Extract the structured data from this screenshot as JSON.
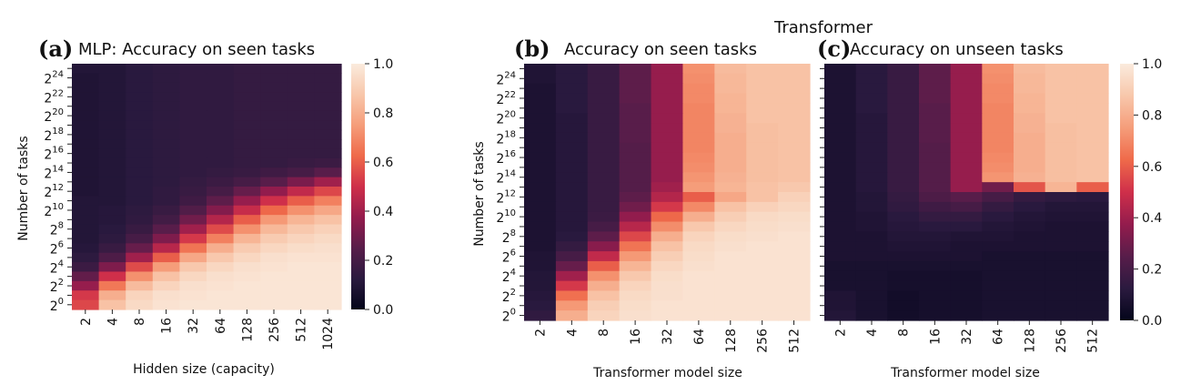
{
  "suptitle": "Transformer",
  "colorscale": {
    "name": "rocket",
    "stops": [
      "#03051a",
      "#2b1a3f",
      "#581d4a",
      "#941c4d",
      "#cf2f4a",
      "#ef6a4a",
      "#f59d7a",
      "#f8c7ab",
      "#faebdd"
    ]
  },
  "chart_data": [
    {
      "type": "heatmap",
      "panel": "(a)",
      "title": "MLP: Accuracy on seen tasks",
      "xlabel": "Hidden size (capacity)",
      "ylabel": "Number of tasks",
      "x_ticks": [
        "2",
        "4",
        "8",
        "16",
        "32",
        "64",
        "128",
        "256",
        "512",
        "1024"
      ],
      "y_ticks": [
        {
          "base": "2",
          "exp": "24"
        },
        {
          "base": "2",
          "exp": "22"
        },
        {
          "base": "2",
          "exp": "20"
        },
        {
          "base": "2",
          "exp": "18"
        },
        {
          "base": "2",
          "exp": "16"
        },
        {
          "base": "2",
          "exp": "14"
        },
        {
          "base": "2",
          "exp": "12"
        },
        {
          "base": "2",
          "exp": "10"
        },
        {
          "base": "2",
          "exp": "8"
        },
        {
          "base": "2",
          "exp": "6"
        },
        {
          "base": "2",
          "exp": "4"
        },
        {
          "base": "2",
          "exp": "2"
        },
        {
          "base": "2",
          "exp": "0"
        }
      ],
      "y_rows_log2_top_to_bottom": [
        25,
        24,
        23,
        22,
        21,
        20,
        19,
        18,
        17,
        16,
        15,
        14,
        13,
        12,
        11,
        10,
        9,
        8,
        7,
        6,
        5,
        4,
        3,
        2,
        1,
        0
      ],
      "z": [
        [
          0.1,
          0.1,
          0.12,
          0.13,
          0.14,
          0.14,
          0.15,
          0.15,
          0.15,
          0.15
        ],
        [
          0.09,
          0.1,
          0.12,
          0.13,
          0.14,
          0.14,
          0.15,
          0.15,
          0.15,
          0.15
        ],
        [
          0.09,
          0.1,
          0.12,
          0.13,
          0.14,
          0.14,
          0.15,
          0.15,
          0.15,
          0.15
        ],
        [
          0.09,
          0.1,
          0.12,
          0.13,
          0.14,
          0.14,
          0.15,
          0.15,
          0.15,
          0.15
        ],
        [
          0.09,
          0.1,
          0.12,
          0.13,
          0.14,
          0.14,
          0.15,
          0.15,
          0.15,
          0.15
        ],
        [
          0.09,
          0.1,
          0.12,
          0.13,
          0.14,
          0.14,
          0.15,
          0.15,
          0.15,
          0.15
        ],
        [
          0.09,
          0.1,
          0.12,
          0.13,
          0.14,
          0.14,
          0.15,
          0.15,
          0.15,
          0.15
        ],
        [
          0.09,
          0.1,
          0.12,
          0.13,
          0.14,
          0.14,
          0.15,
          0.15,
          0.15,
          0.15
        ],
        [
          0.09,
          0.1,
          0.12,
          0.13,
          0.14,
          0.14,
          0.15,
          0.15,
          0.15,
          0.15
        ],
        [
          0.09,
          0.1,
          0.12,
          0.13,
          0.14,
          0.14,
          0.15,
          0.15,
          0.15,
          0.15
        ],
        [
          0.09,
          0.1,
          0.12,
          0.13,
          0.14,
          0.14,
          0.15,
          0.15,
          0.16,
          0.17
        ],
        [
          0.09,
          0.1,
          0.12,
          0.13,
          0.14,
          0.15,
          0.16,
          0.18,
          0.2,
          0.25
        ],
        [
          0.09,
          0.1,
          0.12,
          0.13,
          0.15,
          0.17,
          0.2,
          0.25,
          0.32,
          0.4
        ],
        [
          0.09,
          0.1,
          0.12,
          0.14,
          0.16,
          0.2,
          0.28,
          0.37,
          0.47,
          0.55
        ],
        [
          0.1,
          0.1,
          0.12,
          0.14,
          0.18,
          0.26,
          0.38,
          0.5,
          0.6,
          0.68
        ],
        [
          0.1,
          0.11,
          0.13,
          0.16,
          0.23,
          0.34,
          0.48,
          0.62,
          0.72,
          0.78
        ],
        [
          0.1,
          0.11,
          0.14,
          0.19,
          0.3,
          0.44,
          0.6,
          0.74,
          0.82,
          0.86
        ],
        [
          0.1,
          0.12,
          0.16,
          0.25,
          0.4,
          0.56,
          0.72,
          0.83,
          0.88,
          0.91
        ],
        [
          0.1,
          0.13,
          0.2,
          0.33,
          0.52,
          0.68,
          0.82,
          0.89,
          0.92,
          0.94
        ],
        [
          0.11,
          0.16,
          0.28,
          0.45,
          0.65,
          0.8,
          0.89,
          0.93,
          0.95,
          0.96
        ],
        [
          0.13,
          0.22,
          0.4,
          0.6,
          0.78,
          0.88,
          0.93,
          0.96,
          0.97,
          0.97
        ],
        [
          0.17,
          0.33,
          0.56,
          0.75,
          0.88,
          0.93,
          0.96,
          0.97,
          0.98,
          0.98
        ],
        [
          0.27,
          0.5,
          0.72,
          0.86,
          0.93,
          0.96,
          0.97,
          0.98,
          0.98,
          0.98
        ],
        [
          0.38,
          0.66,
          0.84,
          0.92,
          0.96,
          0.97,
          0.98,
          0.98,
          0.98,
          0.98
        ],
        [
          0.52,
          0.8,
          0.92,
          0.96,
          0.97,
          0.98,
          0.98,
          0.98,
          0.98,
          0.98
        ],
        [
          0.55,
          0.86,
          0.94,
          0.97,
          0.98,
          0.98,
          0.98,
          0.98,
          0.98,
          0.98
        ]
      ],
      "zlim": [
        0,
        1
      ],
      "colorbar_ticks": [
        "0.0",
        "0.2",
        "0.4",
        "0.6",
        "0.8",
        "1.0"
      ]
    },
    {
      "type": "heatmap",
      "panel": "(b)",
      "title": "Accuracy on seen tasks",
      "xlabel": "Transformer model size",
      "ylabel": "Number of tasks",
      "x_ticks": [
        "2",
        "4",
        "8",
        "16",
        "32",
        "64",
        "128",
        "256",
        "512"
      ],
      "y_ticks": [
        {
          "base": "2",
          "exp": "24"
        },
        {
          "base": "2",
          "exp": "22"
        },
        {
          "base": "2",
          "exp": "20"
        },
        {
          "base": "2",
          "exp": "18"
        },
        {
          "base": "2",
          "exp": "16"
        },
        {
          "base": "2",
          "exp": "14"
        },
        {
          "base": "2",
          "exp": "12"
        },
        {
          "base": "2",
          "exp": "10"
        },
        {
          "base": "2",
          "exp": "8"
        },
        {
          "base": "2",
          "exp": "6"
        },
        {
          "base": "2",
          "exp": "4"
        },
        {
          "base": "2",
          "exp": "2"
        },
        {
          "base": "2",
          "exp": "0"
        }
      ],
      "y_rows_log2_top_to_bottom": [
        25,
        24,
        23,
        22,
        21,
        20,
        19,
        18,
        17,
        16,
        15,
        14,
        13,
        12,
        11,
        10,
        9,
        8,
        7,
        6,
        5,
        4,
        3,
        2,
        1,
        0
      ],
      "z": [
        [
          0.09,
          0.12,
          0.16,
          0.26,
          0.38,
          0.72,
          0.84,
          0.86,
          0.86
        ],
        [
          0.09,
          0.12,
          0.16,
          0.26,
          0.38,
          0.71,
          0.83,
          0.86,
          0.86
        ],
        [
          0.08,
          0.12,
          0.16,
          0.26,
          0.38,
          0.7,
          0.83,
          0.86,
          0.86
        ],
        [
          0.08,
          0.12,
          0.16,
          0.26,
          0.38,
          0.7,
          0.82,
          0.86,
          0.86
        ],
        [
          0.08,
          0.12,
          0.16,
          0.25,
          0.38,
          0.69,
          0.82,
          0.86,
          0.86
        ],
        [
          0.08,
          0.11,
          0.16,
          0.25,
          0.38,
          0.69,
          0.81,
          0.86,
          0.86
        ],
        [
          0.08,
          0.11,
          0.16,
          0.25,
          0.38,
          0.69,
          0.81,
          0.85,
          0.86
        ],
        [
          0.08,
          0.11,
          0.16,
          0.25,
          0.38,
          0.69,
          0.8,
          0.85,
          0.86
        ],
        [
          0.08,
          0.11,
          0.16,
          0.24,
          0.38,
          0.69,
          0.8,
          0.85,
          0.86
        ],
        [
          0.08,
          0.11,
          0.16,
          0.24,
          0.38,
          0.7,
          0.8,
          0.85,
          0.86
        ],
        [
          0.08,
          0.11,
          0.16,
          0.24,
          0.38,
          0.71,
          0.8,
          0.85,
          0.86
        ],
        [
          0.08,
          0.11,
          0.16,
          0.24,
          0.38,
          0.73,
          0.81,
          0.85,
          0.86
        ],
        [
          0.08,
          0.11,
          0.16,
          0.24,
          0.4,
          0.75,
          0.82,
          0.86,
          0.88
        ],
        [
          0.08,
          0.11,
          0.16,
          0.26,
          0.44,
          0.6,
          0.78,
          0.86,
          0.91
        ],
        [
          0.08,
          0.11,
          0.16,
          0.3,
          0.52,
          0.7,
          0.86,
          0.91,
          0.93
        ],
        [
          0.08,
          0.11,
          0.17,
          0.37,
          0.62,
          0.8,
          0.9,
          0.94,
          0.95
        ],
        [
          0.08,
          0.11,
          0.2,
          0.45,
          0.71,
          0.88,
          0.93,
          0.95,
          0.96
        ],
        [
          0.08,
          0.12,
          0.26,
          0.55,
          0.8,
          0.92,
          0.95,
          0.96,
          0.97
        ],
        [
          0.08,
          0.15,
          0.35,
          0.65,
          0.86,
          0.94,
          0.96,
          0.97,
          0.97
        ],
        [
          0.09,
          0.2,
          0.47,
          0.74,
          0.9,
          0.95,
          0.97,
          0.97,
          0.97
        ],
        [
          0.09,
          0.28,
          0.6,
          0.82,
          0.93,
          0.96,
          0.97,
          0.97,
          0.97
        ],
        [
          0.1,
          0.4,
          0.72,
          0.88,
          0.95,
          0.97,
          0.97,
          0.97,
          0.97
        ],
        [
          0.1,
          0.52,
          0.8,
          0.92,
          0.96,
          0.97,
          0.97,
          0.97,
          0.97
        ],
        [
          0.11,
          0.64,
          0.86,
          0.94,
          0.96,
          0.97,
          0.97,
          0.97,
          0.97
        ],
        [
          0.12,
          0.74,
          0.9,
          0.95,
          0.97,
          0.97,
          0.97,
          0.97,
          0.97
        ],
        [
          0.14,
          0.8,
          0.92,
          0.96,
          0.97,
          0.97,
          0.97,
          0.97,
          0.97
        ]
      ],
      "zlim": [
        0,
        1
      ]
    },
    {
      "type": "heatmap",
      "panel": "(c)",
      "title": "Accuracy on unseen tasks",
      "xlabel": "Transformer model size",
      "ylabel": "",
      "x_ticks": [
        "2",
        "4",
        "8",
        "16",
        "32",
        "64",
        "128",
        "256",
        "512"
      ],
      "y_rows_log2_top_to_bottom": [
        25,
        24,
        23,
        22,
        21,
        20,
        19,
        18,
        17,
        16,
        15,
        14,
        13,
        12,
        11,
        10,
        9,
        8,
        7,
        6,
        5,
        4,
        3,
        2,
        1,
        0
      ],
      "z": [
        [
          0.08,
          0.12,
          0.16,
          0.26,
          0.38,
          0.72,
          0.84,
          0.86,
          0.86
        ],
        [
          0.08,
          0.12,
          0.16,
          0.26,
          0.38,
          0.71,
          0.83,
          0.86,
          0.86
        ],
        [
          0.08,
          0.12,
          0.16,
          0.26,
          0.38,
          0.7,
          0.83,
          0.86,
          0.86
        ],
        [
          0.08,
          0.12,
          0.16,
          0.26,
          0.38,
          0.7,
          0.82,
          0.86,
          0.86
        ],
        [
          0.08,
          0.12,
          0.16,
          0.25,
          0.38,
          0.69,
          0.82,
          0.86,
          0.86
        ],
        [
          0.08,
          0.11,
          0.16,
          0.25,
          0.38,
          0.69,
          0.81,
          0.86,
          0.86
        ],
        [
          0.08,
          0.11,
          0.16,
          0.25,
          0.38,
          0.69,
          0.81,
          0.85,
          0.86
        ],
        [
          0.08,
          0.11,
          0.16,
          0.25,
          0.38,
          0.69,
          0.8,
          0.85,
          0.86
        ],
        [
          0.08,
          0.11,
          0.16,
          0.24,
          0.38,
          0.69,
          0.8,
          0.85,
          0.86
        ],
        [
          0.08,
          0.11,
          0.16,
          0.24,
          0.38,
          0.7,
          0.8,
          0.85,
          0.86
        ],
        [
          0.08,
          0.11,
          0.16,
          0.24,
          0.38,
          0.71,
          0.8,
          0.85,
          0.86
        ],
        [
          0.08,
          0.11,
          0.16,
          0.24,
          0.38,
          0.73,
          0.81,
          0.85,
          0.86
        ],
        [
          0.08,
          0.11,
          0.16,
          0.24,
          0.38,
          0.3,
          0.58,
          0.82,
          0.6
        ],
        [
          0.08,
          0.1,
          0.15,
          0.22,
          0.25,
          0.2,
          0.15,
          0.13,
          0.12
        ],
        [
          0.08,
          0.1,
          0.14,
          0.18,
          0.2,
          0.15,
          0.12,
          0.1,
          0.1
        ],
        [
          0.08,
          0.09,
          0.12,
          0.15,
          0.15,
          0.12,
          0.1,
          0.09,
          0.09
        ],
        [
          0.08,
          0.09,
          0.11,
          0.12,
          0.12,
          0.1,
          0.09,
          0.08,
          0.08
        ],
        [
          0.08,
          0.08,
          0.1,
          0.1,
          0.09,
          0.09,
          0.08,
          0.08,
          0.08
        ],
        [
          0.08,
          0.08,
          0.09,
          0.09,
          0.08,
          0.08,
          0.08,
          0.08,
          0.08
        ],
        [
          0.08,
          0.08,
          0.08,
          0.08,
          0.08,
          0.07,
          0.07,
          0.07,
          0.07
        ],
        [
          0.07,
          0.07,
          0.07,
          0.07,
          0.07,
          0.07,
          0.07,
          0.07,
          0.07
        ],
        [
          0.07,
          0.07,
          0.06,
          0.06,
          0.06,
          0.07,
          0.07,
          0.07,
          0.07
        ],
        [
          0.07,
          0.07,
          0.06,
          0.06,
          0.06,
          0.07,
          0.07,
          0.07,
          0.07
        ],
        [
          0.09,
          0.07,
          0.05,
          0.06,
          0.06,
          0.07,
          0.07,
          0.07,
          0.07
        ],
        [
          0.09,
          0.07,
          0.05,
          0.06,
          0.06,
          0.07,
          0.07,
          0.07,
          0.07
        ],
        [
          0.1,
          0.07,
          0.05,
          0.06,
          0.06,
          0.07,
          0.07,
          0.07,
          0.07
        ]
      ],
      "zlim": [
        0,
        1
      ],
      "colorbar_ticks": [
        "0.0",
        "0.2",
        "0.4",
        "0.6",
        "0.8",
        "1.0"
      ]
    }
  ]
}
